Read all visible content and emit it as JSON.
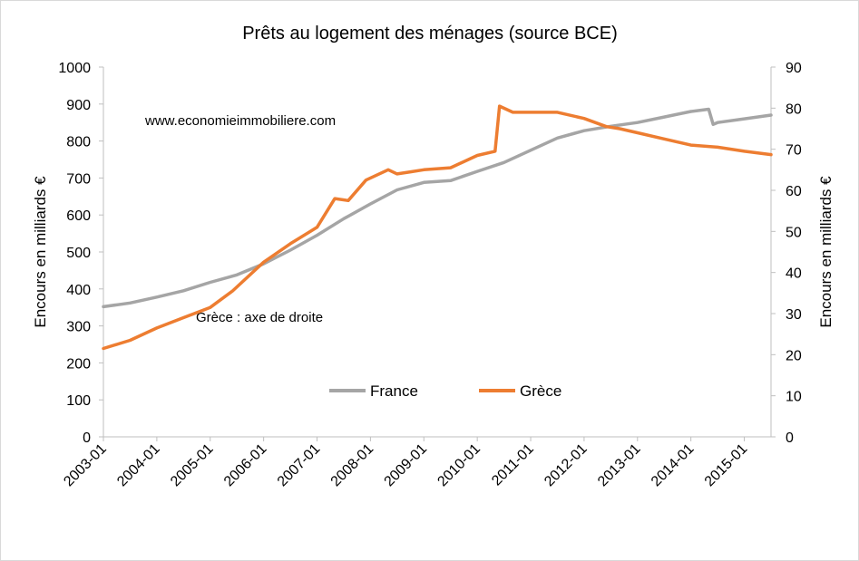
{
  "chart_data": {
    "type": "line",
    "title": "Prêts au logement des ménages (source BCE)",
    "ylabel_left": "Encours en milliards €",
    "ylabel_right": "Encours en milliards €",
    "ylim_left": [
      0,
      1000
    ],
    "ylim_right": [
      0,
      90
    ],
    "yticks_left": [
      "0",
      "100",
      "200",
      "300",
      "400",
      "500",
      "600",
      "700",
      "800",
      "900",
      "1000"
    ],
    "yticks_right": [
      "0",
      "10",
      "20",
      "30",
      "40",
      "50",
      "60",
      "70",
      "80",
      "90"
    ],
    "xticks": [
      "2003-01",
      "2004-01",
      "2005-01",
      "2006-01",
      "2007-01",
      "2008-01",
      "2009-01",
      "2010-01",
      "2011-01",
      "2012-01",
      "2013-01",
      "2014-01",
      "2015-01"
    ],
    "annotations": [
      "www.economieimmobiliere.com",
      "Grèce : axe de droite"
    ],
    "legend_position": "bottom-center",
    "grid": false,
    "series": [
      {
        "name": "France",
        "axis": "left",
        "color": "#a5a5a5",
        "points": [
          [
            "2003-01",
            352
          ],
          [
            "2003-07",
            362
          ],
          [
            "2004-01",
            378
          ],
          [
            "2004-07",
            395
          ],
          [
            "2005-01",
            418
          ],
          [
            "2005-07",
            438
          ],
          [
            "2006-01",
            468
          ],
          [
            "2006-07",
            505
          ],
          [
            "2007-01",
            545
          ],
          [
            "2007-07",
            590
          ],
          [
            "2008-01",
            630
          ],
          [
            "2008-07",
            668
          ],
          [
            "2009-01",
            688
          ],
          [
            "2009-07",
            693
          ],
          [
            "2010-01",
            718
          ],
          [
            "2010-07",
            742
          ],
          [
            "2011-01",
            775
          ],
          [
            "2011-07",
            808
          ],
          [
            "2012-01",
            828
          ],
          [
            "2012-07",
            840
          ],
          [
            "2013-01",
            850
          ],
          [
            "2013-07",
            865
          ],
          [
            "2014-01",
            880
          ],
          [
            "2014-05",
            886
          ],
          [
            "2014-06",
            845
          ],
          [
            "2014-07",
            850
          ],
          [
            "2015-01",
            860
          ],
          [
            "2015-07",
            870
          ]
        ]
      },
      {
        "name": "Grèce",
        "axis": "right",
        "color": "#ed7d31",
        "points": [
          [
            "2003-01",
            21.5
          ],
          [
            "2003-07",
            23.5
          ],
          [
            "2004-01",
            26.5
          ],
          [
            "2004-07",
            29.0
          ],
          [
            "2005-01",
            31.5
          ],
          [
            "2005-06",
            35.5
          ],
          [
            "2006-01",
            42.5
          ],
          [
            "2006-07",
            47.0
          ],
          [
            "2007-01",
            51.0
          ],
          [
            "2007-05",
            58.0
          ],
          [
            "2007-08",
            57.5
          ],
          [
            "2007-12",
            62.5
          ],
          [
            "2008-05",
            65.0
          ],
          [
            "2008-07",
            64.0
          ],
          [
            "2008-10",
            64.5
          ],
          [
            "2009-01",
            65.0
          ],
          [
            "2009-07",
            65.5
          ],
          [
            "2010-01",
            68.5
          ],
          [
            "2010-05",
            69.5
          ],
          [
            "2010-06",
            80.5
          ],
          [
            "2010-09",
            79.0
          ],
          [
            "2011-01",
            79.0
          ],
          [
            "2011-07",
            79.0
          ],
          [
            "2012-01",
            77.5
          ],
          [
            "2012-06",
            75.5
          ],
          [
            "2012-09",
            75.0
          ],
          [
            "2013-01",
            74.0
          ],
          [
            "2013-07",
            72.5
          ],
          [
            "2014-01",
            71.0
          ],
          [
            "2014-07",
            70.5
          ],
          [
            "2015-01",
            69.5
          ],
          [
            "2015-07",
            68.7
          ]
        ]
      }
    ]
  }
}
